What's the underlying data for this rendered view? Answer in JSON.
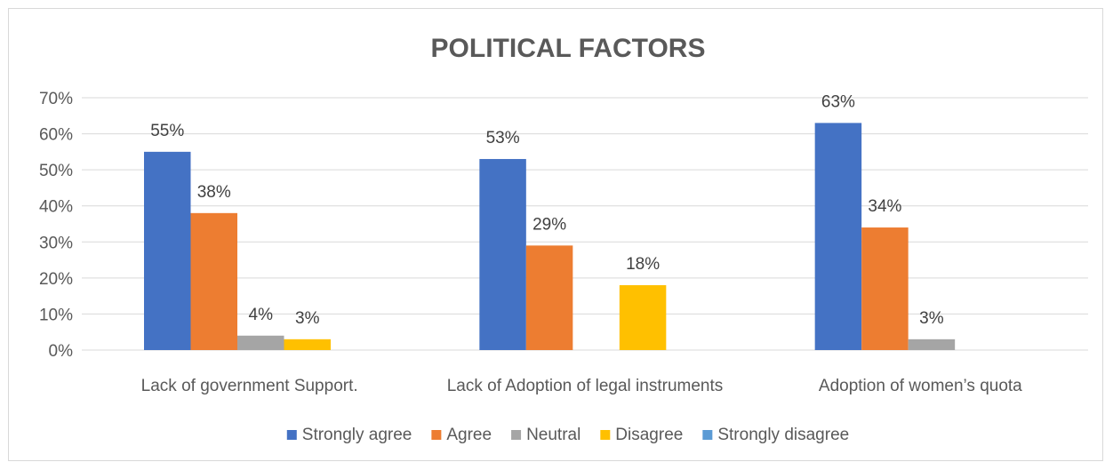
{
  "chart_data": {
    "type": "bar",
    "title": "POLITICAL FACTORS",
    "xlabel": "",
    "ylabel": "",
    "categories": [
      "Lack of government Support.",
      "Lack of Adoption of legal instruments",
      "Adoption of women’s quota"
    ],
    "ylim": [
      0,
      70
    ],
    "yticks": [
      "0%",
      "10%",
      "20%",
      "30%",
      "40%",
      "50%",
      "60%",
      "70%"
    ],
    "grid": true,
    "legend_position": "bottom",
    "series": [
      {
        "name": "Strongly agree",
        "color": "#4472c4",
        "values": [
          55,
          53,
          63
        ],
        "labels": [
          "55%",
          "53%",
          "63%"
        ]
      },
      {
        "name": "Agree",
        "color": "#ed7d31",
        "values": [
          38,
          29,
          34
        ],
        "labels": [
          "38%",
          "29%",
          "34%"
        ]
      },
      {
        "name": "Neutral",
        "color": "#a5a5a5",
        "values": [
          4,
          0,
          3
        ],
        "labels": [
          "4%",
          "",
          "3%"
        ]
      },
      {
        "name": "Disagree",
        "color": "#ffc000",
        "values": [
          3,
          18,
          0
        ],
        "labels": [
          "3%",
          "18%",
          ""
        ]
      },
      {
        "name": "Strongly disagree",
        "color": "#5b9bd5",
        "values": [
          0,
          0,
          0
        ],
        "labels": [
          "",
          "",
          ""
        ]
      }
    ]
  }
}
